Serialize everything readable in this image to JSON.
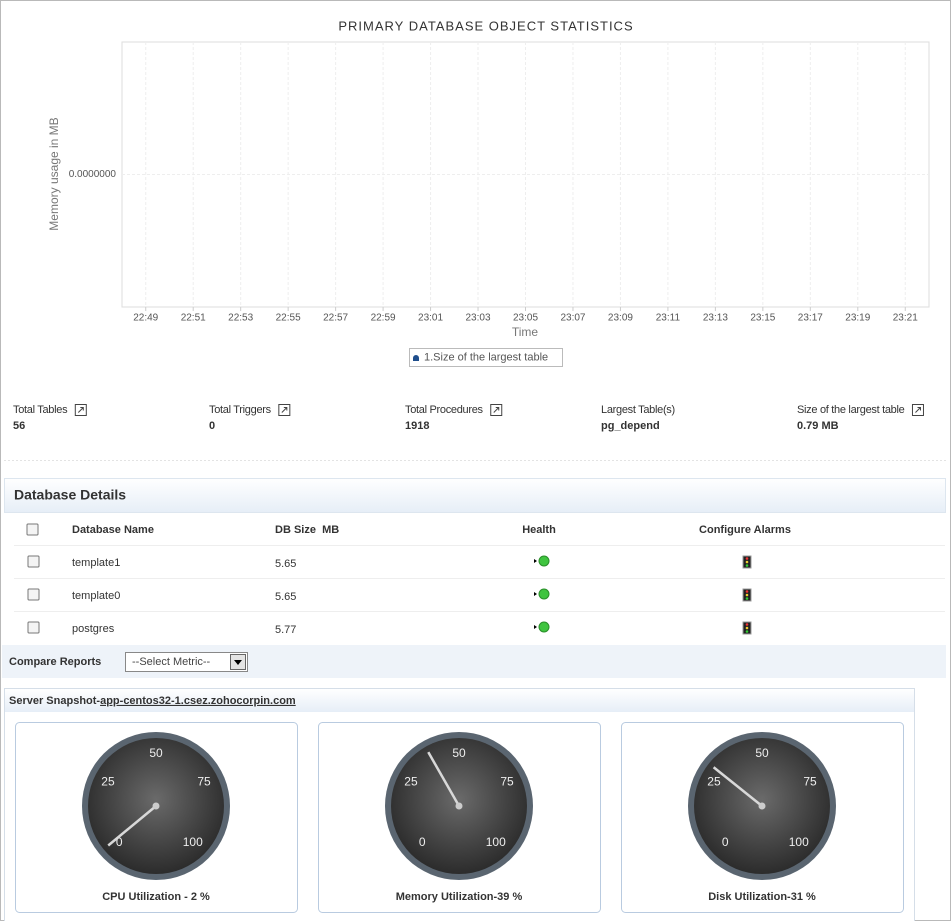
{
  "chart_data": {
    "type": "line",
    "title": "PRIMARY DATABASE OBJECT STATISTICS",
    "y_label": "Memory usage in MB",
    "x_label": "Time",
    "categories": [
      "22:49",
      "22:51",
      "22:53",
      "22:55",
      "22:57",
      "22:59",
      "23:01",
      "23:03",
      "23:05",
      "23:07",
      "23:09",
      "23:11",
      "23:13",
      "23:15",
      "23:17",
      "23:19",
      "23:21"
    ],
    "series": [
      {
        "name": "1.Size of the largest table",
        "color": "#1f4e8c",
        "values": [
          null,
          null,
          null,
          null,
          null,
          null,
          null,
          null,
          null,
          null,
          null,
          null,
          null,
          null,
          null,
          null,
          null
        ]
      }
    ],
    "ylim": [
      -1,
      1
    ],
    "yticks": [
      {
        "value": 0,
        "label": "0.0000000"
      }
    ],
    "grid": true
  },
  "stats": [
    {
      "label": "Total Tables",
      "value": 56
    },
    {
      "label": "Total Triggers",
      "value": 0
    },
    {
      "label": "Total Procedures",
      "value": 1918
    },
    {
      "label": "Largest Table(s)",
      "value": "pg_depend"
    },
    {
      "label": "Size of the largest table",
      "value": "0.79 MB"
    }
  ],
  "database_details": {
    "title": "Database Details",
    "columns": [
      "Database Name",
      "DB Size  MB",
      "Health",
      "Configure Alarms"
    ],
    "rows": [
      [
        "template1",
        5.65
      ],
      [
        "template0",
        5.65
      ],
      [
        "postgres",
        5.77
      ]
    ]
  },
  "compare_reports": {
    "label": "Compare Reports",
    "select": "--Select Metric--"
  },
  "snapshot": {
    "label": "Server Snapshot-",
    "host": "app-centos32-1.csez.zohocorpin.com",
    "range": [
      0,
      100
    ],
    "ticks": [
      0,
      25,
      50,
      75,
      100
    ],
    "gauges": [
      {
        "caption": "CPU Utilization - 2 %",
        "value": 2
      },
      {
        "caption": "Memory Utilization-39 %",
        "value": 39
      },
      {
        "caption": "Disk Utilization-31 %",
        "value": 31
      }
    ]
  }
}
